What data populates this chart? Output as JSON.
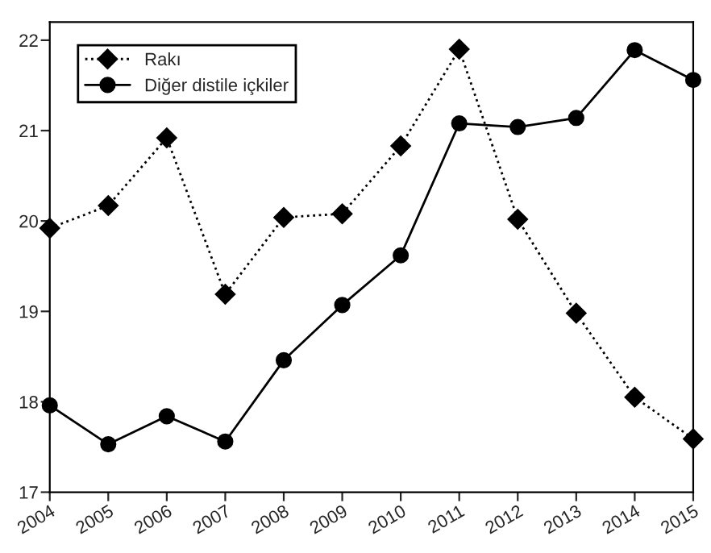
{
  "chart_data": {
    "type": "line",
    "x": [
      2004,
      2005,
      2006,
      2007,
      2008,
      2009,
      2010,
      2011,
      2012,
      2013,
      2014,
      2015
    ],
    "series": [
      {
        "name": "Rakı",
        "color": "#000000",
        "marker": "diamond",
        "line_style": "dotted",
        "values": [
          19.92,
          20.17,
          20.92,
          19.19,
          20.04,
          20.08,
          20.83,
          21.9,
          20.02,
          18.98,
          18.05,
          17.59
        ]
      },
      {
        "name": "Diğer distile içkiler",
        "color": "#000000",
        "marker": "circle",
        "line_style": "solid",
        "values": [
          17.96,
          17.53,
          17.84,
          17.56,
          18.46,
          19.07,
          19.62,
          21.08,
          21.04,
          21.14,
          21.89,
          21.56
        ]
      }
    ],
    "xlim": [
      2004,
      2015
    ],
    "xticks": [
      2004,
      2005,
      2006,
      2007,
      2008,
      2009,
      2010,
      2011,
      2012,
      2013,
      2014,
      2015
    ],
    "ylim": [
      17,
      22.2
    ],
    "yticks": [
      17,
      18,
      19,
      20,
      21,
      22
    ],
    "grid": false,
    "legend": "top left"
  }
}
